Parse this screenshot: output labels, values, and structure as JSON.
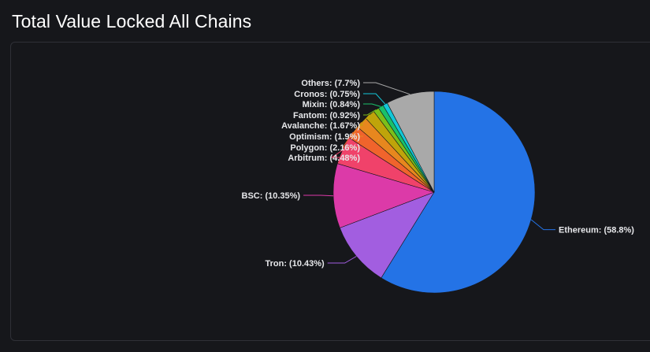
{
  "header": {
    "title": "Total Value Locked All Chains"
  },
  "chart_data": {
    "type": "pie",
    "title": "",
    "slices": [
      {
        "name": "Ethereum",
        "value": 58.8,
        "label": "Ethereum: (58.8%)",
        "color": "#2473e6"
      },
      {
        "name": "Tron",
        "value": 10.43,
        "label": "Tron: (10.43%)",
        "color": "#a25ee0"
      },
      {
        "name": "BSC",
        "value": 10.35,
        "label": "BSC: (10.35%)",
        "color": "#dc3aa8"
      },
      {
        "name": "Arbitrum",
        "value": 4.48,
        "label": "Arbitrum: (4.48%)",
        "color": "#f0426a"
      },
      {
        "name": "Polygon",
        "value": 2.16,
        "label": "Polygon: (2.16%)",
        "color": "#f0642c"
      },
      {
        "name": "Optimism",
        "value": 1.9,
        "label": "Optimism: (1.9%)",
        "color": "#e7871e"
      },
      {
        "name": "Avalanche",
        "value": 1.67,
        "label": "Avalanche: (1.67%)",
        "color": "#bfa40a"
      },
      {
        "name": "Fantom",
        "value": 0.92,
        "label": "Fantom: (0.92%)",
        "color": "#7bbf1a"
      },
      {
        "name": "Mixin",
        "value": 0.84,
        "label": "Mixin: (0.84%)",
        "color": "#19c16b"
      },
      {
        "name": "Cronos",
        "value": 0.75,
        "label": "Cronos: (0.75%)",
        "color": "#12c7d8"
      },
      {
        "name": "Others",
        "value": 7.7,
        "label": "Others: (7.7%)",
        "color": "#a9a9a9"
      }
    ]
  }
}
